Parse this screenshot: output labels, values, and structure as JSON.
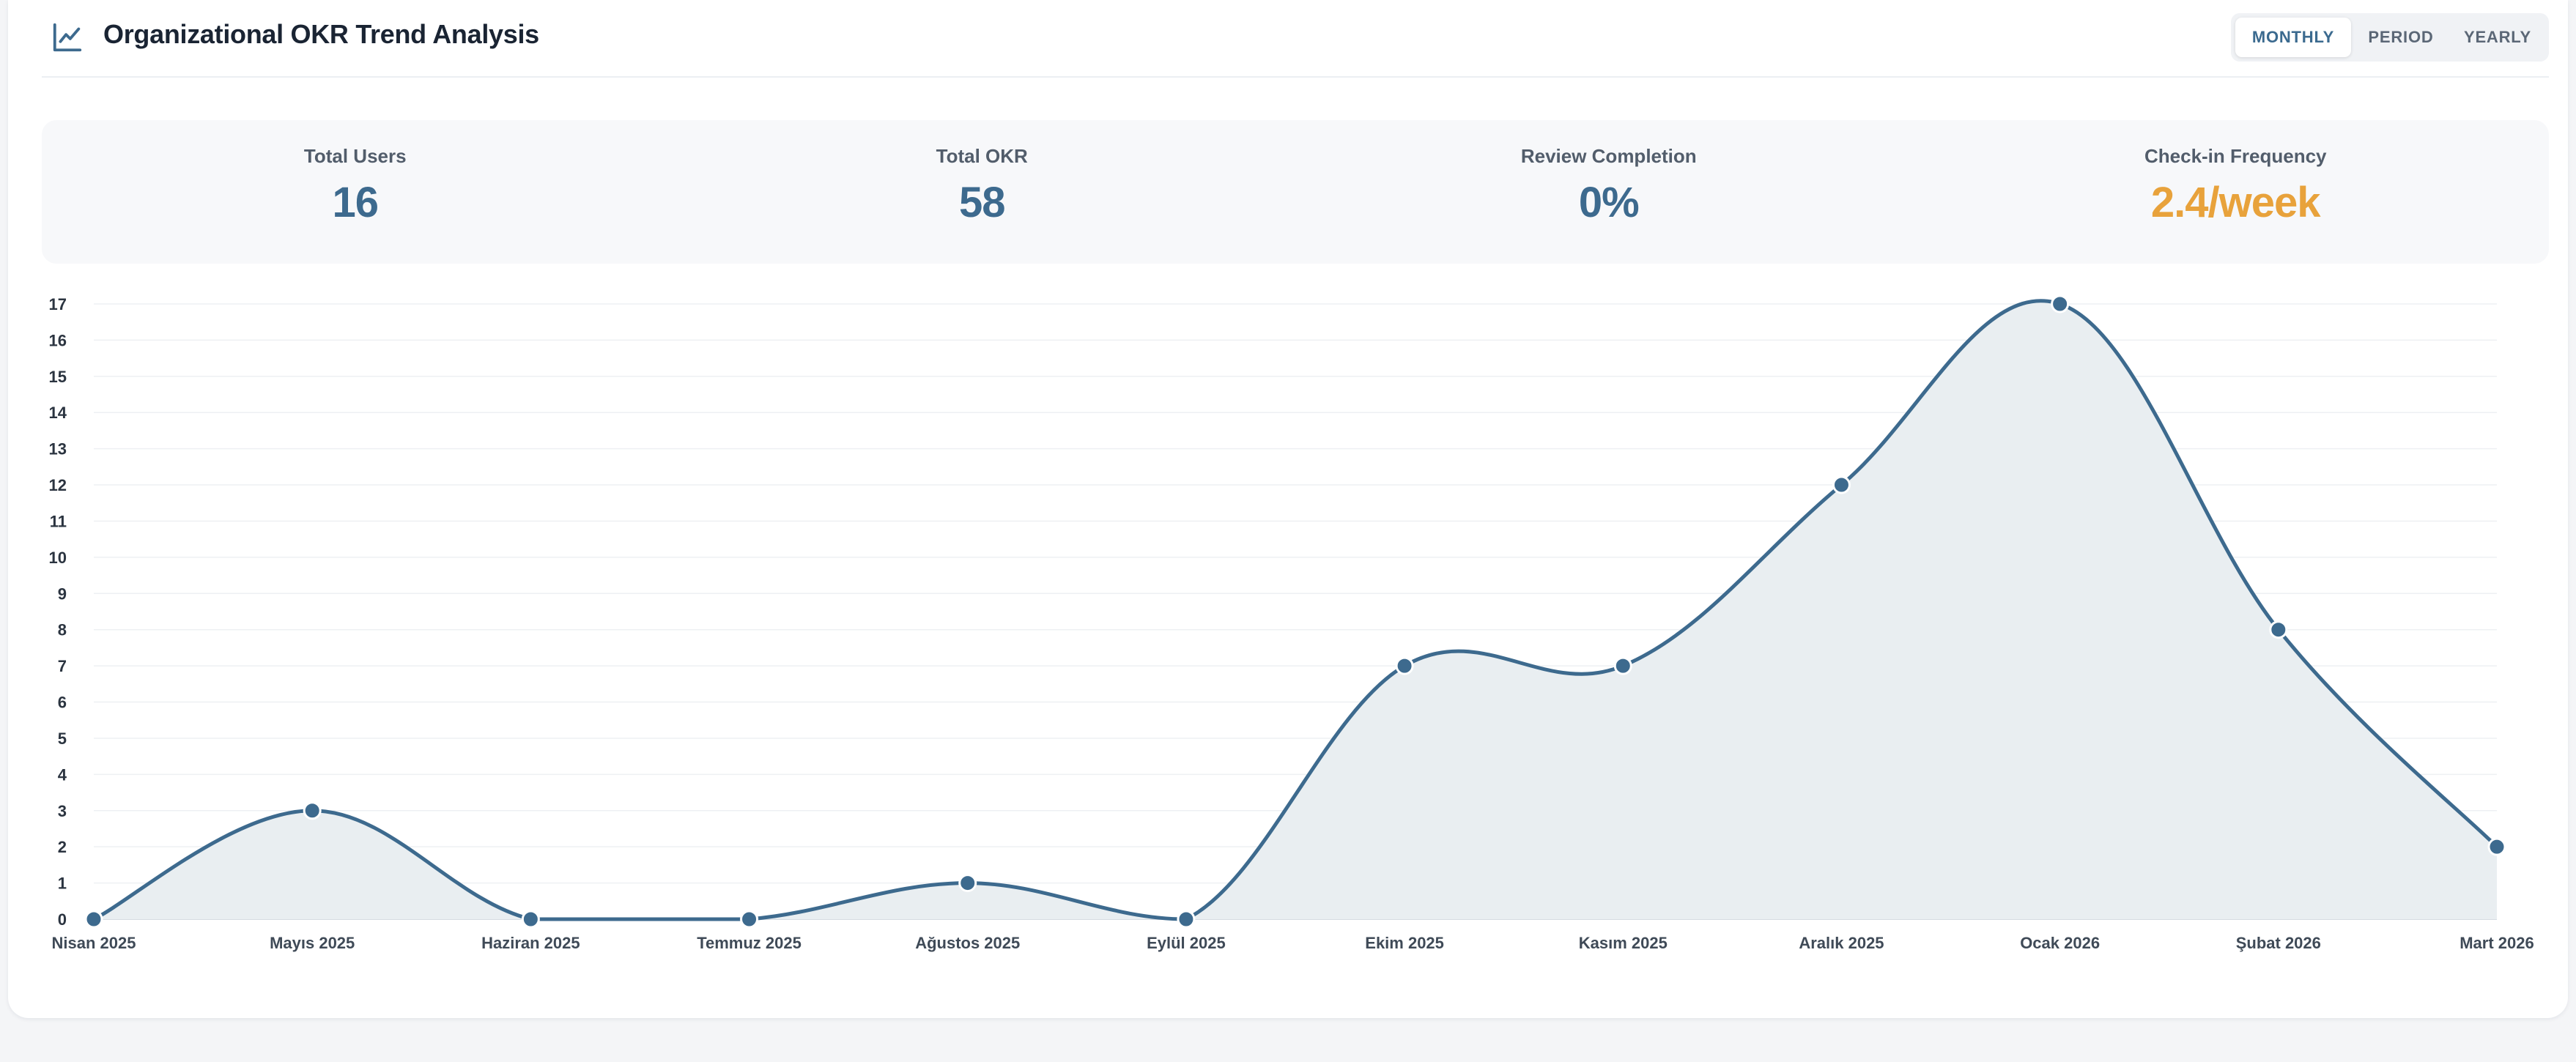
{
  "header": {
    "title": "Organizational OKR Trend Analysis",
    "icon": "line-chart-icon",
    "tabs": [
      {
        "label": "MONTHLY",
        "active": true
      },
      {
        "label": "PERIOD",
        "active": false
      },
      {
        "label": "YEARLY",
        "active": false
      }
    ]
  },
  "stats": [
    {
      "label": "Total Users",
      "value": "16",
      "accent": false
    },
    {
      "label": "Total OKR",
      "value": "58",
      "accent": false
    },
    {
      "label": "Review Completion",
      "value": "0%",
      "accent": false
    },
    {
      "label": "Check-in Frequency",
      "value": "2.4/week",
      "accent": true
    }
  ],
  "colors": {
    "line": "#3d6a8e",
    "area": "#e9eef1",
    "accent": "#e8a23b",
    "grid": "#eef0f3"
  },
  "chart_data": {
    "type": "area",
    "categories": [
      "Nisan 2025",
      "Mayıs 2025",
      "Haziran 2025",
      "Temmuz 2025",
      "Ağustos 2025",
      "Eylül 2025",
      "Ekim 2025",
      "Kasım 2025",
      "Aralık 2025",
      "Ocak 2026",
      "Şubat 2026",
      "Mart 2026"
    ],
    "values": [
      0,
      3,
      0,
      0,
      1,
      0,
      7,
      7,
      12,
      17,
      8,
      2
    ],
    "yticks": [
      0,
      1,
      2,
      3,
      4,
      5,
      6,
      7,
      8,
      9,
      10,
      11,
      12,
      13,
      14,
      15,
      16,
      17
    ],
    "ylim": [
      0,
      17
    ],
    "grid": true,
    "smooth": true
  }
}
